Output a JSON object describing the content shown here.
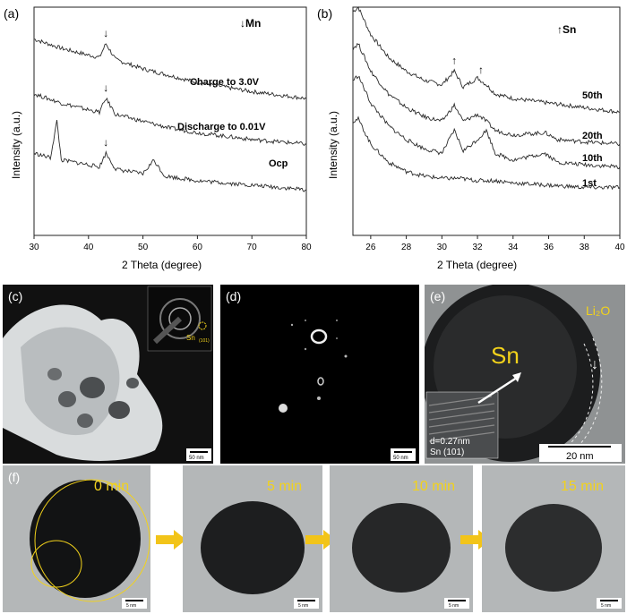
{
  "panel_a": {
    "letter": "(a)",
    "legend": "↓Mn",
    "chart_data": {
      "type": "line",
      "xlabel": "2 Theta (degree)",
      "ylabel": "Intensity (a.u.)",
      "xlim": [
        30,
        80
      ],
      "x_ticks": [
        "30",
        "40",
        "50",
        "60",
        "70",
        "80"
      ],
      "series": [
        {
          "name": "Charge to 3.0V",
          "x": [
            30,
            35,
            40,
            42,
            43.2,
            45,
            50,
            55,
            60,
            70,
            80
          ],
          "y": [
            0.86,
            0.82,
            0.79,
            0.78,
            0.84,
            0.77,
            0.73,
            0.7,
            0.67,
            0.63,
            0.6
          ]
        },
        {
          "name": "Discharge to 0.01V",
          "x": [
            30,
            35,
            40,
            42,
            43.2,
            45,
            50,
            55,
            60,
            70,
            80
          ],
          "y": [
            0.62,
            0.58,
            0.55,
            0.54,
            0.6,
            0.53,
            0.5,
            0.47,
            0.45,
            0.42,
            0.4
          ]
        },
        {
          "name": "Ocp",
          "x": [
            30,
            33,
            34.2,
            35,
            40,
            42,
            43.2,
            45,
            50,
            52,
            54,
            60,
            70,
            80
          ],
          "y": [
            0.36,
            0.34,
            0.5,
            0.33,
            0.31,
            0.3,
            0.36,
            0.29,
            0.27,
            0.33,
            0.26,
            0.24,
            0.22,
            0.2
          ]
        }
      ],
      "markers": [
        {
          "x": 43.2,
          "symbol": "↓"
        }
      ]
    }
  },
  "panel_b": {
    "letter": "(b)",
    "legend": "↑Sn",
    "chart_data": {
      "type": "line",
      "xlabel": "2 Theta (degree)",
      "ylabel": "Intensity (a.u.)",
      "xlim": [
        25,
        40
      ],
      "x_ticks": [
        "26",
        "28",
        "30",
        "32",
        "34",
        "36",
        "38",
        "40"
      ],
      "series": [
        {
          "name": "50th",
          "x": [
            25,
            25.3,
            26,
            27,
            28,
            29,
            30,
            30.7,
            31.2,
            32,
            32.5,
            33,
            34,
            36,
            38,
            40
          ],
          "y": [
            0.98,
            1.0,
            0.88,
            0.78,
            0.72,
            0.68,
            0.66,
            0.72,
            0.65,
            0.69,
            0.66,
            0.62,
            0.6,
            0.58,
            0.56,
            0.54
          ]
        },
        {
          "name": "20th",
          "x": [
            25,
            25.3,
            26,
            27,
            28,
            29,
            30,
            30.7,
            31.2,
            32,
            32.5,
            33,
            34,
            35.8,
            36.5,
            38,
            40
          ],
          "y": [
            0.82,
            0.84,
            0.72,
            0.62,
            0.56,
            0.52,
            0.5,
            0.57,
            0.5,
            0.53,
            0.5,
            0.46,
            0.44,
            0.45,
            0.42,
            0.41,
            0.4
          ]
        },
        {
          "name": "10th",
          "x": [
            25,
            25.3,
            26,
            27,
            28,
            29,
            30,
            30.7,
            31.2,
            32,
            32.5,
            33,
            34,
            35.8,
            36.5,
            38,
            40
          ],
          "y": [
            0.68,
            0.7,
            0.58,
            0.48,
            0.42,
            0.38,
            0.36,
            0.46,
            0.37,
            0.42,
            0.46,
            0.36,
            0.33,
            0.36,
            0.32,
            0.31,
            0.3
          ]
        },
        {
          "name": "1st",
          "x": [
            25,
            25.3,
            26,
            27,
            28,
            29,
            30,
            31,
            32,
            33,
            34,
            36,
            38,
            40
          ],
          "y": [
            0.5,
            0.51,
            0.4,
            0.32,
            0.28,
            0.26,
            0.25,
            0.25,
            0.24,
            0.24,
            0.23,
            0.22,
            0.21,
            0.21
          ]
        }
      ],
      "markers": [
        {
          "x": 30.7,
          "symbol": "↑"
        },
        {
          "x": 32.2,
          "symbol": "↑"
        }
      ]
    }
  },
  "panel_c": {
    "letter": "(c)",
    "inset_label": "Sn",
    "inset_sub": "(101)",
    "scale": "50 nm"
  },
  "panel_d": {
    "letter": "(d)",
    "scale": "50 nm"
  },
  "panel_e": {
    "letter": "(e)",
    "label_sn": "Sn",
    "label_li2o": "Li₂O",
    "d_spacing": "d=0.27nm",
    "plane": "Sn (101)",
    "scale": "20 nm"
  },
  "panel_f": {
    "letter": "(f)",
    "frames": [
      {
        "time": "0 min",
        "scale": "5 nm"
      },
      {
        "time": "5 min",
        "scale": "5 nm"
      },
      {
        "time": "10 min",
        "scale": "5 nm"
      },
      {
        "time": "15 min",
        "scale": "5 nm"
      }
    ]
  },
  "colors": {
    "accent_yellow": "#f2d21b",
    "plot_line": "#2a2a2a"
  }
}
